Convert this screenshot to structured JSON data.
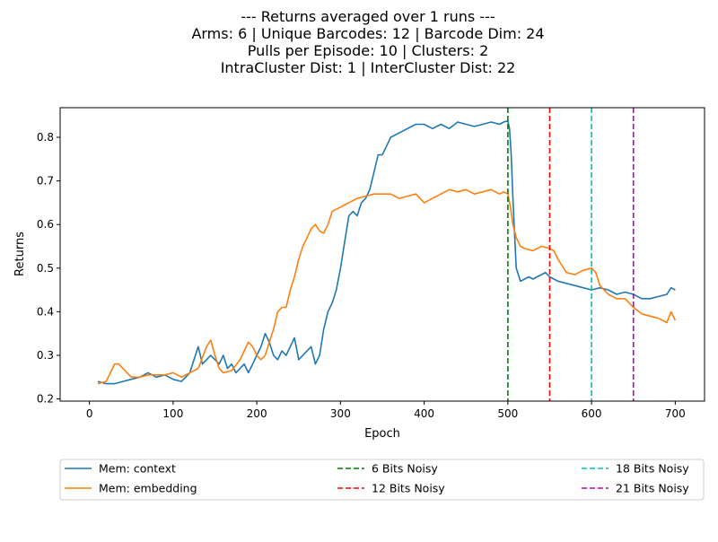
{
  "chart_data": {
    "type": "line",
    "title_lines": [
      "--- Returns averaged over 1 runs ---",
      "Arms: 6 | Unique Barcodes: 12 | Barcode Dim: 24",
      "Pulls per Episode: 10 | Clusters: 2",
      "IntraCluster Dist: 1 | InterCluster Dist: 22"
    ],
    "xlabel": "Epoch",
    "ylabel": "Returns",
    "xlim": [
      -35,
      735
    ],
    "ylim": [
      0.195,
      0.868
    ],
    "xticks": [
      0,
      100,
      200,
      300,
      400,
      500,
      600,
      700
    ],
    "yticks": [
      0.2,
      0.3,
      0.4,
      0.5,
      0.6,
      0.7,
      0.8
    ],
    "ytick_labels": [
      "0.2",
      "0.3",
      "0.4",
      "0.5",
      "0.6",
      "0.7",
      "0.8"
    ],
    "grid": false,
    "legend_placement": "below plot, 3 columns",
    "series": [
      {
        "name": "Mem: context",
        "color": "#1f77b4",
        "x": [
          10,
          20,
          30,
          40,
          50,
          60,
          70,
          80,
          90,
          100,
          110,
          120,
          125,
          130,
          135,
          140,
          145,
          150,
          155,
          160,
          165,
          170,
          175,
          180,
          185,
          190,
          195,
          200,
          205,
          210,
          215,
          220,
          225,
          230,
          235,
          240,
          245,
          250,
          255,
          260,
          265,
          270,
          275,
          280,
          285,
          290,
          295,
          300,
          305,
          310,
          315,
          320,
          325,
          330,
          335,
          340,
          345,
          350,
          355,
          360,
          370,
          380,
          390,
          400,
          410,
          420,
          430,
          440,
          450,
          460,
          470,
          480,
          490,
          495,
          500,
          502,
          504,
          506,
          508,
          510,
          515,
          520,
          525,
          530,
          535,
          540,
          545,
          550,
          555,
          560,
          570,
          580,
          590,
          600,
          610,
          620,
          630,
          640,
          650,
          660,
          670,
          680,
          690,
          695,
          700
        ],
        "values": [
          0.24,
          0.235,
          0.235,
          0.24,
          0.245,
          0.25,
          0.26,
          0.25,
          0.255,
          0.245,
          0.24,
          0.26,
          0.29,
          0.32,
          0.28,
          0.29,
          0.3,
          0.29,
          0.28,
          0.3,
          0.27,
          0.28,
          0.26,
          0.27,
          0.28,
          0.26,
          0.28,
          0.3,
          0.32,
          0.35,
          0.33,
          0.3,
          0.29,
          0.31,
          0.3,
          0.32,
          0.34,
          0.29,
          0.3,
          0.31,
          0.32,
          0.28,
          0.3,
          0.36,
          0.4,
          0.42,
          0.45,
          0.5,
          0.56,
          0.62,
          0.63,
          0.62,
          0.65,
          0.66,
          0.68,
          0.72,
          0.76,
          0.76,
          0.78,
          0.8,
          0.81,
          0.82,
          0.83,
          0.83,
          0.82,
          0.83,
          0.82,
          0.835,
          0.83,
          0.825,
          0.83,
          0.835,
          0.83,
          0.835,
          0.838,
          0.82,
          0.76,
          0.66,
          0.58,
          0.5,
          0.47,
          0.475,
          0.48,
          0.475,
          0.48,
          0.485,
          0.49,
          0.48,
          0.475,
          0.47,
          0.465,
          0.46,
          0.455,
          0.45,
          0.455,
          0.45,
          0.44,
          0.445,
          0.44,
          0.43,
          0.43,
          0.435,
          0.44,
          0.455,
          0.45
        ]
      },
      {
        "name": "Mem: embedding",
        "color": "#ff7f0e",
        "x": [
          10,
          20,
          25,
          30,
          35,
          40,
          45,
          50,
          60,
          70,
          80,
          90,
          100,
          110,
          120,
          130,
          140,
          145,
          150,
          155,
          160,
          170,
          180,
          190,
          195,
          200,
          205,
          210,
          215,
          220,
          225,
          230,
          235,
          240,
          245,
          250,
          255,
          260,
          265,
          270,
          275,
          280,
          285,
          290,
          300,
          310,
          320,
          330,
          340,
          350,
          360,
          370,
          380,
          390,
          400,
          410,
          420,
          430,
          440,
          450,
          460,
          470,
          480,
          490,
          495,
          500,
          503,
          506,
          510,
          515,
          520,
          530,
          540,
          550,
          555,
          560,
          570,
          580,
          590,
          600,
          605,
          610,
          620,
          630,
          640,
          650,
          660,
          670,
          680,
          690,
          695,
          700
        ],
        "values": [
          0.235,
          0.24,
          0.26,
          0.28,
          0.28,
          0.27,
          0.26,
          0.25,
          0.25,
          0.255,
          0.255,
          0.255,
          0.26,
          0.25,
          0.26,
          0.27,
          0.32,
          0.335,
          0.3,
          0.27,
          0.26,
          0.265,
          0.29,
          0.33,
          0.32,
          0.3,
          0.29,
          0.3,
          0.33,
          0.36,
          0.4,
          0.41,
          0.41,
          0.45,
          0.48,
          0.52,
          0.55,
          0.57,
          0.59,
          0.6,
          0.585,
          0.58,
          0.6,
          0.63,
          0.64,
          0.65,
          0.66,
          0.665,
          0.67,
          0.67,
          0.67,
          0.66,
          0.665,
          0.67,
          0.65,
          0.66,
          0.67,
          0.68,
          0.675,
          0.68,
          0.67,
          0.675,
          0.68,
          0.67,
          0.675,
          0.67,
          0.64,
          0.6,
          0.57,
          0.55,
          0.545,
          0.54,
          0.55,
          0.545,
          0.54,
          0.52,
          0.49,
          0.485,
          0.495,
          0.5,
          0.49,
          0.46,
          0.44,
          0.43,
          0.43,
          0.41,
          0.395,
          0.39,
          0.385,
          0.375,
          0.4,
          0.38
        ]
      }
    ],
    "vlines": [
      {
        "name": "6 Bits Noisy",
        "x": 500,
        "color": "#008000"
      },
      {
        "name": "12 Bits Noisy",
        "x": 550,
        "color": "#ff0000"
      },
      {
        "name": "18 Bits Noisy",
        "x": 600,
        "color": "#00bfbf"
      },
      {
        "name": "21 Bits Noisy",
        "x": 650,
        "color": "#bf00bf"
      }
    ]
  }
}
